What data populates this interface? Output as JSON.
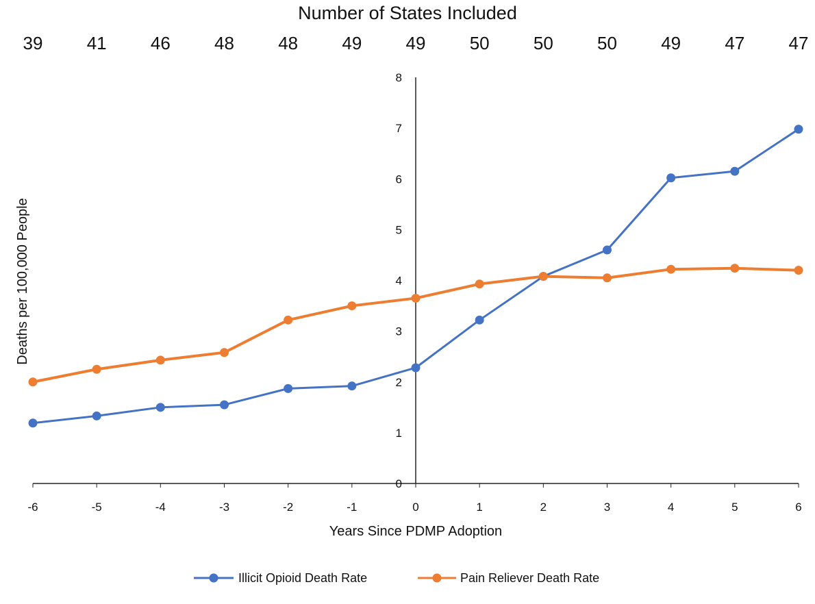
{
  "chart_data": {
    "type": "line",
    "top_axis": {
      "title": "Number of States Included",
      "values": [
        "39",
        "41",
        "46",
        "48",
        "48",
        "49",
        "49",
        "50",
        "50",
        "50",
        "49",
        "47",
        "47"
      ]
    },
    "x": [
      -6,
      -5,
      -4,
      -3,
      -2,
      -1,
      0,
      1,
      2,
      3,
      4,
      5,
      6
    ],
    "x_tick_labels": [
      "-6",
      "-5",
      "-4",
      "-3",
      "-2",
      "-1",
      "0",
      "1",
      "2",
      "3",
      "4",
      "5",
      "6"
    ],
    "xlabel": "Years Since PDMP Adoption",
    "ylabel": "Deaths per 100,000 People",
    "ylim": [
      0,
      8
    ],
    "y_ticks": [
      0,
      1,
      2,
      3,
      4,
      5,
      6,
      7,
      8
    ],
    "y_tick_labels": [
      "0",
      "1",
      "2",
      "3",
      "4",
      "5",
      "6",
      "7",
      "8"
    ],
    "series": [
      {
        "name": "Illicit Opioid Death Rate",
        "color": "#4472C4",
        "values": [
          1.19,
          1.33,
          1.5,
          1.55,
          1.87,
          1.92,
          2.28,
          3.22,
          4.08,
          4.6,
          6.02,
          6.15,
          6.98
        ]
      },
      {
        "name": "Pain Reliever Death Rate",
        "color": "#ED7D31",
        "values": [
          2.0,
          2.25,
          2.43,
          2.58,
          3.22,
          3.5,
          3.65,
          3.93,
          4.08,
          4.05,
          4.22,
          4.24,
          4.2
        ]
      }
    ],
    "grid": false,
    "legend": "bottom"
  }
}
